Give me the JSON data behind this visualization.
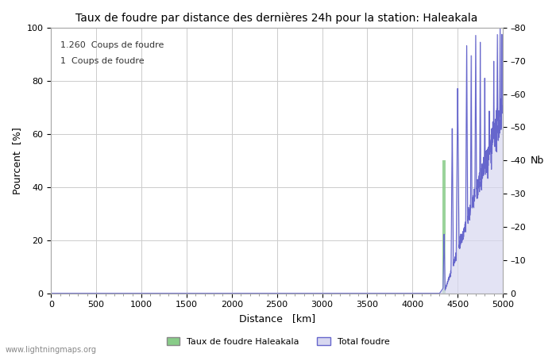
{
  "title": "Taux de foudre par distance des dernières 24h pour la station: Haleakala",
  "xlabel": "Distance   [km]",
  "ylabel_left": "Pourcent  [%]",
  "ylabel_right": "Nb",
  "annotation_line1": "1.260  Coups de foudre",
  "annotation_line2": "1  Coups de foudre",
  "xlim": [
    0,
    5000
  ],
  "ylim_left": [
    0,
    100
  ],
  "ylim_right": [
    0,
    80
  ],
  "x_ticks": [
    0,
    500,
    1000,
    1500,
    2000,
    2500,
    3000,
    3500,
    4000,
    4500,
    5000
  ],
  "y_ticks_left": [
    0,
    20,
    40,
    60,
    80,
    100
  ],
  "y_ticks_right": [
    0,
    10,
    20,
    30,
    40,
    50,
    60,
    70,
    80
  ],
  "bg_color": "#ffffff",
  "plot_bg_color": "#ffffff",
  "grid_color": "#cccccc",
  "blue_line_color": "#6666cc",
  "blue_fill_color": "#d8d8f0",
  "green_bar_color": "#88cc88",
  "green_bar_x": 4350,
  "green_bar_height": 50,
  "green_bar_width": 30,
  "footer_text": "www.lightningmaps.org",
  "legend_green_label": "Taux de foudre Haleakala",
  "legend_blue_label": "Total foudre"
}
